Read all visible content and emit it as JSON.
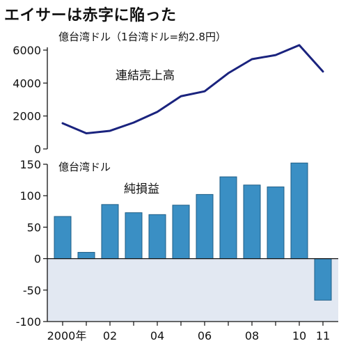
{
  "title": "エイサーは赤字に陥った",
  "chart_data": [
    {
      "type": "line",
      "unit_label": "億台湾ドル（1台湾ドル=約2.8円）",
      "series": [
        {
          "name": "連結売上高",
          "x": [
            2000,
            2001,
            2002,
            2003,
            2004,
            2005,
            2006,
            2007,
            2008,
            2009,
            2010,
            2011
          ],
          "values": [
            1560,
            950,
            1100,
            1600,
            2250,
            3200,
            3500,
            4600,
            5450,
            5700,
            6300,
            4700
          ]
        }
      ],
      "ylim": [
        0,
        6000
      ],
      "yticks": [
        0,
        2000,
        4000,
        6000
      ],
      "color": "#1a237e"
    },
    {
      "type": "bar",
      "unit_label": "億台湾ドル",
      "series": [
        {
          "name": "純損益",
          "x": [
            2000,
            2001,
            2002,
            2003,
            2004,
            2005,
            2006,
            2007,
            2008,
            2009,
            2010,
            2011
          ],
          "values": [
            67,
            10,
            86,
            73,
            70,
            85,
            102,
            130,
            117,
            114,
            152,
            -66
          ]
        }
      ],
      "ylim": [
        -100,
        150
      ],
      "yticks": [
        -100,
        -50,
        0,
        50,
        100,
        150
      ],
      "xtick_labels": [
        "2000年",
        "02",
        "04",
        "06",
        "08",
        "10",
        "11"
      ],
      "bar_color": "#3a8fc4",
      "negative_region_color": "#e2e8f2"
    }
  ]
}
